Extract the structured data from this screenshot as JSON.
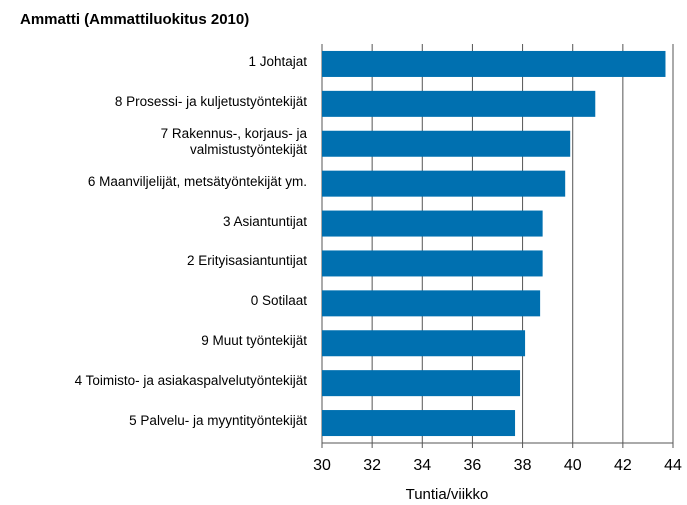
{
  "chart_data": {
    "type": "barh",
    "title": "Ammatti (Ammattiluokitus 2010)",
    "x_label": "Tuntia/viikko",
    "categories": [
      "1 Johtajat",
      "8 Prosessi- ja kuljetustyöntekijät",
      "7 Rakennus-, korjaus- ja\nvalmistustyöntekijät",
      "6 Maanviljelijät, metsätyöntekijät ym.",
      "3 Asiantuntijat",
      "2 Erityisasiantuntijat",
      "0  Sotilaat",
      "9 Muut työntekijät",
      "4 Toimisto- ja asiakaspalvelutyöntekijät",
      "5 Palvelu- ja myyntityöntekijät"
    ],
    "values": [
      43.7,
      40.9,
      39.9,
      39.7,
      38.8,
      38.8,
      38.7,
      38.1,
      37.9,
      37.7
    ],
    "color": "#0070b0",
    "xlim": [
      30,
      44
    ],
    "xticks": [
      30,
      32,
      34,
      36,
      38,
      40,
      42,
      44
    ],
    "grid": true
  }
}
